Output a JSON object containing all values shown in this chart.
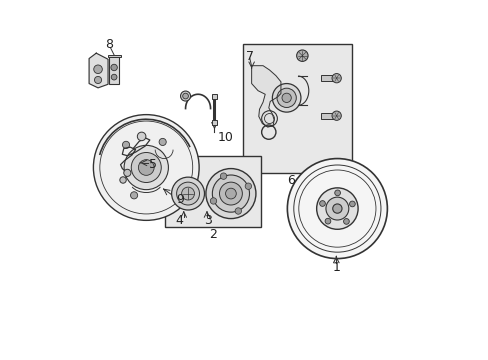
{
  "bg_color": "#ffffff",
  "line_color": "#333333",
  "box_fill": "#e8e8e8",
  "label_fontsize": 9
}
